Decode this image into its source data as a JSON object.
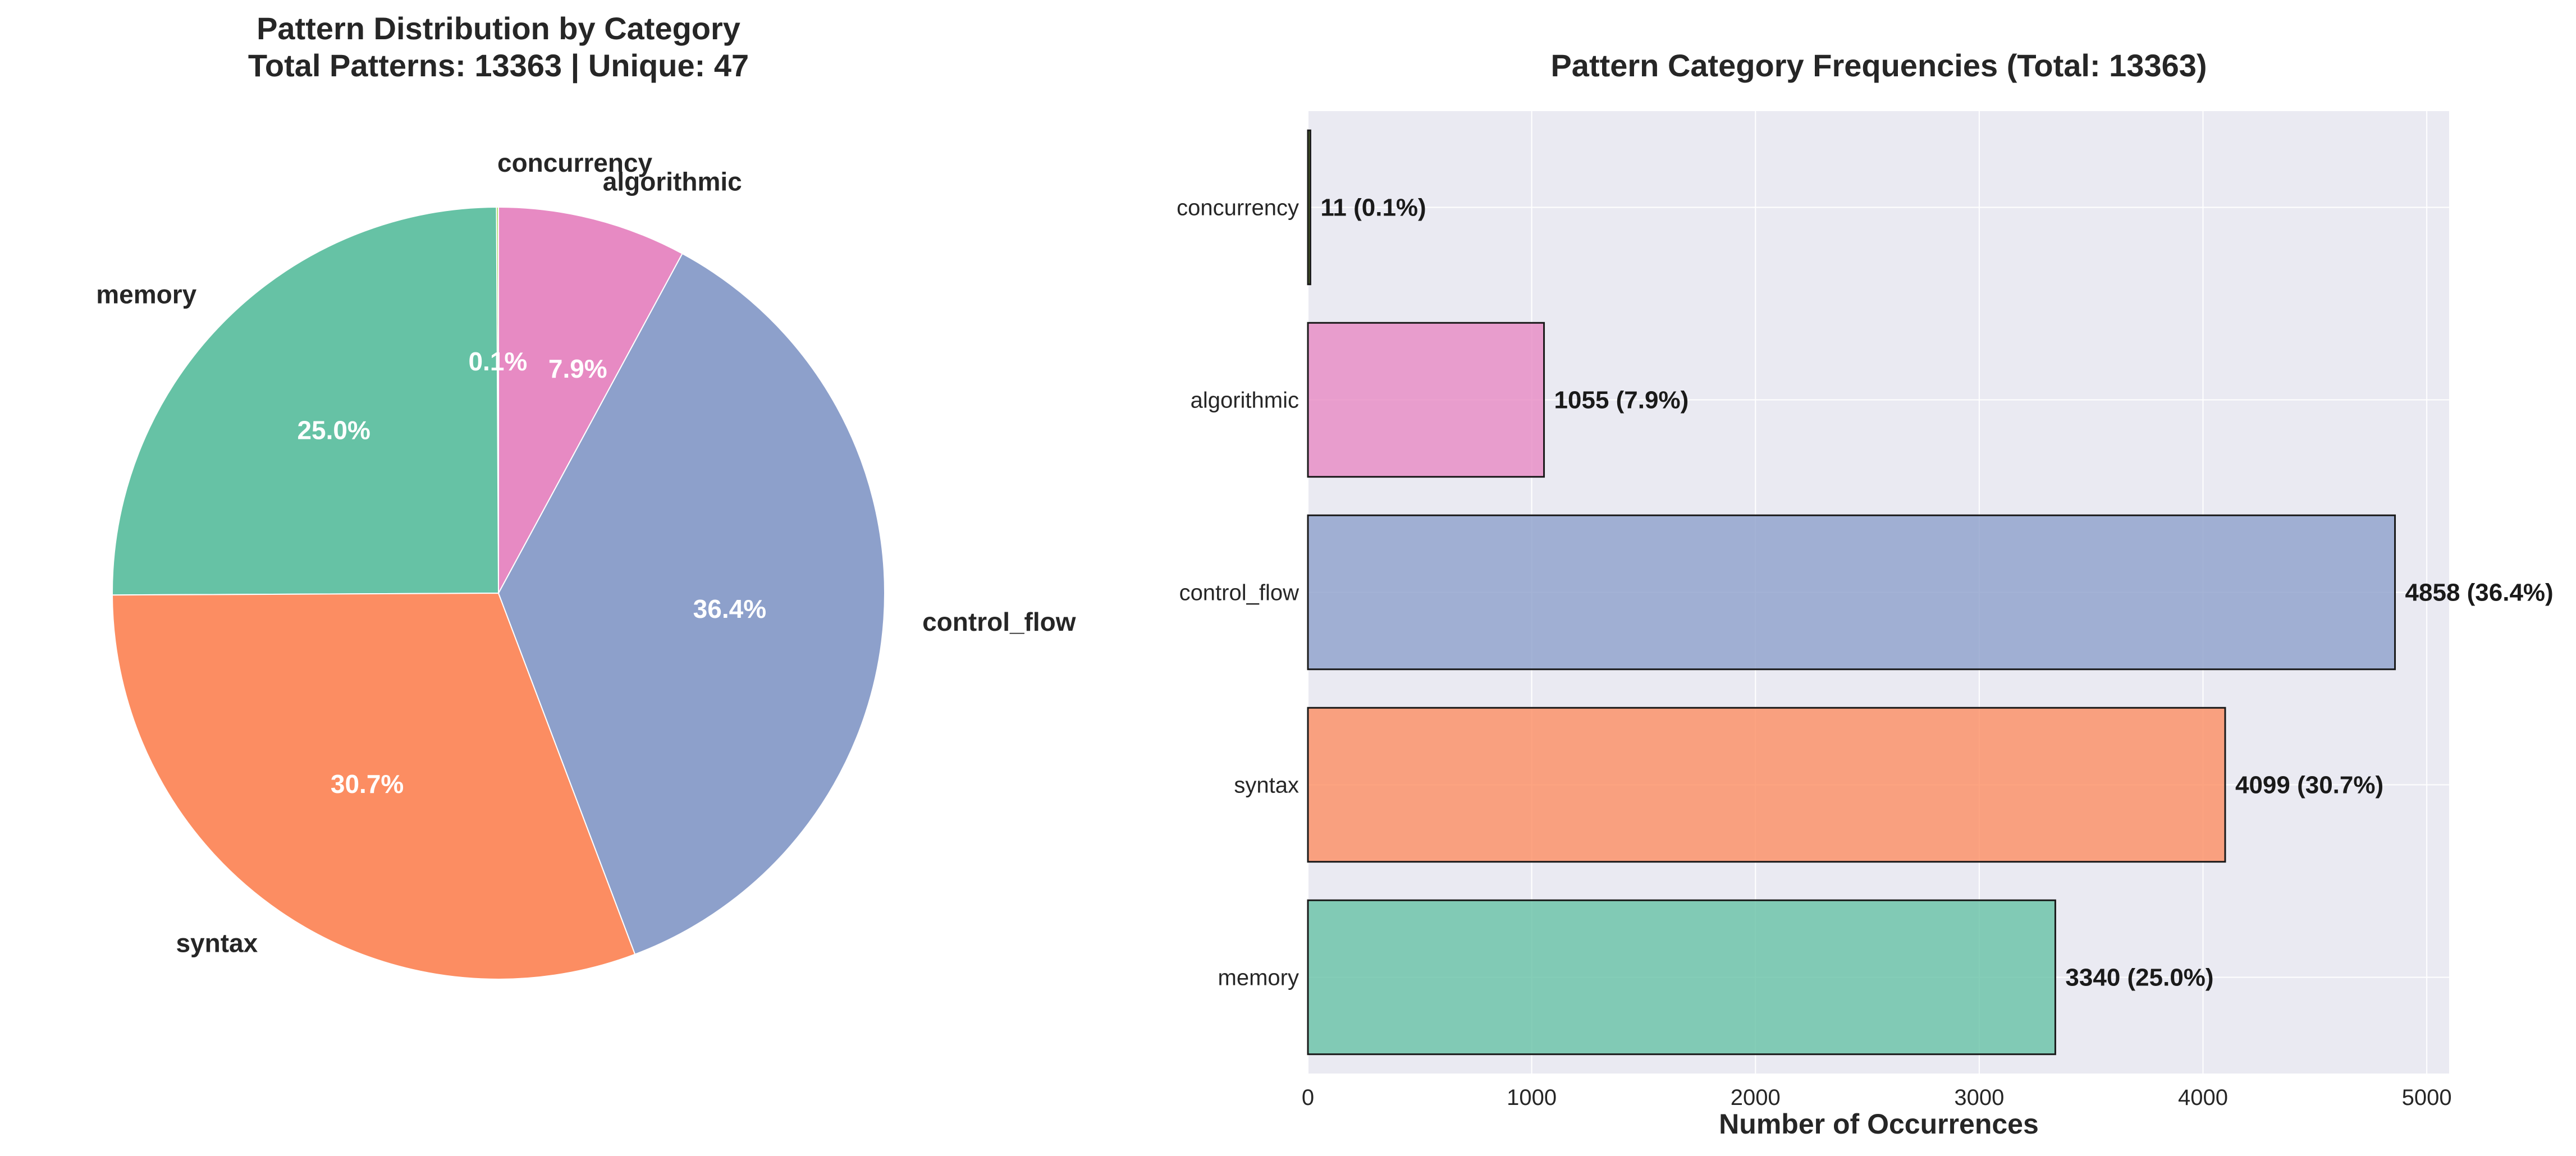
{
  "colors": {
    "memory": "#66c2a5",
    "syntax": "#fc8d62",
    "control_flow": "#8da0cb",
    "algorithmic": "#e78ac3",
    "concurrency": "#a6d854",
    "axes_background": "#eaeaf2",
    "grid": "#ffffff",
    "text": "#262626"
  },
  "chart_data": [
    {
      "type": "pie",
      "title": "Pattern Distribution by Category",
      "subtitle": "Total Patterns: 13363 | Unique: 47",
      "start_angle_deg": 90,
      "direction": "counterclockwise",
      "slices": [
        {
          "label": "concurrency",
          "value": 11,
          "pct_label": "0.1%",
          "color": "#a6d854"
        },
        {
          "label": "memory",
          "value": 3340,
          "pct_label": "25.0%",
          "color": "#66c2a5"
        },
        {
          "label": "syntax",
          "value": 4099,
          "pct_label": "30.7%",
          "color": "#fc8d62"
        },
        {
          "label": "control_flow",
          "value": 4858,
          "pct_label": "36.4%",
          "color": "#8da0cb"
        },
        {
          "label": "algorithmic",
          "value": 1055,
          "pct_label": "7.9%",
          "color": "#e78ac3"
        }
      ]
    },
    {
      "type": "bar",
      "orientation": "horizontal",
      "title": "Pattern Category Frequencies (Total: 13363)",
      "xlabel": "Number of Occurrences",
      "ylabel": "",
      "xlim": [
        0,
        5100
      ],
      "xticks": [
        0,
        1000,
        2000,
        3000,
        4000,
        5000
      ],
      "grid": true,
      "categories": [
        "concurrency",
        "algorithmic",
        "control_flow",
        "syntax",
        "memory"
      ],
      "values": [
        11,
        1055,
        4858,
        4099,
        3340
      ],
      "data_labels": [
        "11 (0.1%)",
        "1055 (7.9%)",
        "4858 (36.4%)",
        "4099 (30.7%)",
        "3340 (25.0%)"
      ],
      "colors": [
        "#556b2f",
        "#e78ac3",
        "#8da0cb",
        "#fc8d62",
        "#66c2a5"
      ]
    }
  ]
}
